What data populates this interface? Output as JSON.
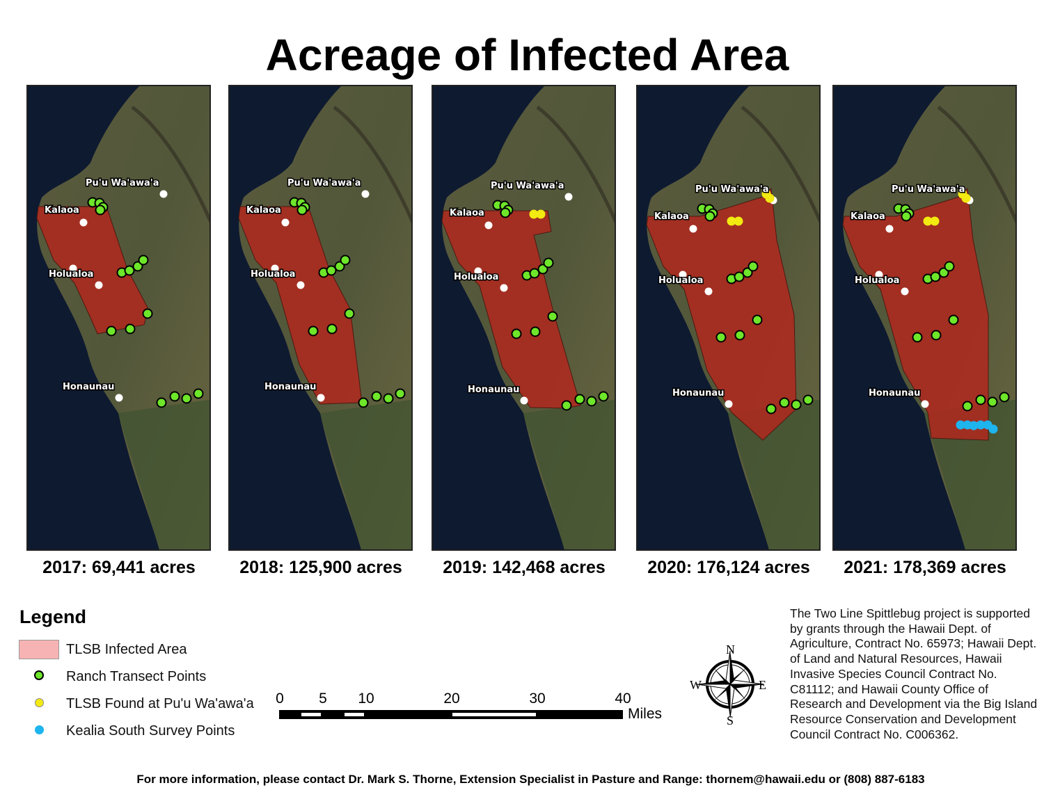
{
  "title": "Acreage of Infected Area",
  "colors": {
    "infected": "#b0281e",
    "ranch": "#6ee62a",
    "tlsb": "#f2ea10",
    "kealia": "#1eb4ee",
    "town": "#ffffff"
  },
  "place_labels": [
    "Pu'u Wa'awa'a",
    "Kalaoa",
    "Holualoa",
    "Honaunau"
  ],
  "panels": [
    {
      "year": "2017",
      "caption": "2017: 69,441 acres",
      "acres": 69441
    },
    {
      "year": "2018",
      "caption": "2018: 125,900 acres",
      "acres": 125900
    },
    {
      "year": "2019",
      "caption": "2019: 142,468 acres",
      "acres": 142468
    },
    {
      "year": "2020",
      "caption": "2020: 176,124 acres",
      "acres": 176124
    },
    {
      "year": "2021",
      "caption": "2021: 178,369 acres",
      "acres": 178369
    }
  ],
  "legend": {
    "title": "Legend",
    "items": [
      "TLSB Infected Area",
      "Ranch Transect Points",
      "TLSB Found at Pu'u Wa'awa'a",
      "Kealia South Survey Points"
    ]
  },
  "scale_bar": {
    "labels": [
      "0",
      "5",
      "10",
      "20",
      "30",
      "40"
    ],
    "unit": "Miles"
  },
  "compass": {
    "n": "N",
    "s": "S",
    "e": "E",
    "w": "W"
  },
  "credit": "The Two Line Spittlebug project is supported by grants through the Hawaii Dept. of Agriculture, Contract No. 65973; Hawaii Dept. of Land and Natural Resources, Hawaii Invasive Species Council Contract No. C81112; and Hawaii County Office of Research and Development via the Big Island Resource Conservation and Development Council Contract No. C006362.",
  "footer": "For more information, please contact Dr. Mark S. Thorne, Extension Specialist in Pasture and Range: thornem@hawaii.edu or (808) 887-6183"
}
